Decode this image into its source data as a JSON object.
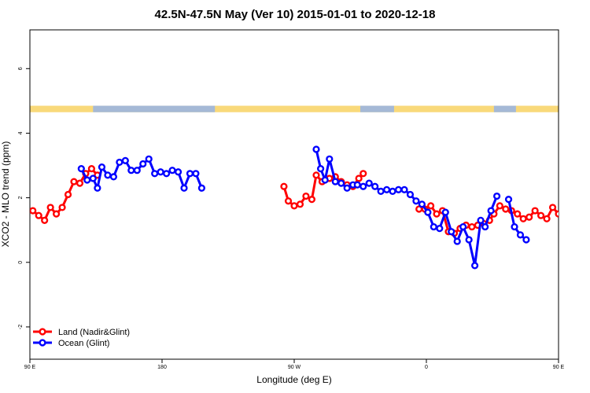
{
  "chart_data": {
    "type": "line",
    "title": "42.5N-47.5N May (Ver 10)   2015-01-01 to 2020-12-18",
    "xlabel": "Longitude (deg E)",
    "ylabel": "XCO2 - MLO trend (ppm)",
    "xlim": [
      90,
      450
    ],
    "ylim": [
      -3.0,
      7.2
    ],
    "x_ticks": [
      {
        "value": 90,
        "label": "90 E"
      },
      {
        "value": 180,
        "label": "180"
      },
      {
        "value": 270,
        "label": "90 W"
      },
      {
        "value": 360,
        "label": "0"
      },
      {
        "value": 450,
        "label": "90 E"
      },
      {
        "value": 540,
        "label": "180"
      }
    ],
    "y_ticks": [
      {
        "value": -2,
        "label": "-2"
      },
      {
        "value": 0,
        "label": "0"
      },
      {
        "value": 2,
        "label": "2"
      },
      {
        "value": 4,
        "label": "4"
      },
      {
        "value": 6,
        "label": "6"
      }
    ],
    "grid": false,
    "legend_position": "bottom-left",
    "surface_strip": {
      "y_range": [
        4.65,
        4.85
      ],
      "land_color": "#f9d97a",
      "ocean_color": "#a5b9d6",
      "ocean_segments": [
        [
          133,
          216
        ],
        [
          315,
          338
        ],
        [
          406,
          421
        ],
        [
          454,
          531
        ]
      ]
    },
    "series": [
      {
        "name": "Land (Nadir&Glint)",
        "color": "#ff0000",
        "points": [
          [
            92,
            1.6
          ],
          [
            96,
            1.45
          ],
          [
            100,
            1.3
          ],
          [
            104,
            1.7
          ],
          [
            108,
            1.5
          ],
          [
            112,
            1.7
          ],
          [
            116,
            2.1
          ],
          [
            120,
            2.5
          ],
          [
            124,
            2.45
          ],
          [
            128,
            2.75
          ],
          [
            132,
            2.9
          ],
          [
            136,
            2.7
          ],
          null,
          [
            263,
            2.35
          ],
          [
            266,
            1.9
          ],
          [
            270,
            1.75
          ],
          [
            274,
            1.8
          ],
          [
            278,
            2.05
          ],
          [
            282,
            1.95
          ],
          [
            285,
            2.7
          ],
          [
            289,
            2.5
          ],
          [
            294,
            2.6
          ],
          [
            298,
            2.65
          ],
          [
            302,
            2.5
          ],
          [
            306,
            2.4
          ],
          [
            310,
            2.35
          ],
          [
            314,
            2.6
          ],
          [
            317,
            2.75
          ],
          null,
          [
            355,
            1.65
          ],
          [
            359,
            1.65
          ],
          [
            363,
            1.75
          ],
          [
            367,
            1.5
          ],
          [
            371,
            1.6
          ],
          [
            375,
            0.95
          ],
          [
            379,
            0.9
          ],
          [
            383,
            1.05
          ],
          [
            387,
            1.15
          ],
          [
            391,
            1.1
          ],
          [
            395,
            1.15
          ],
          [
            399,
            1.2
          ],
          [
            403,
            1.3
          ],
          [
            406,
            1.5
          ],
          [
            410,
            1.75
          ],
          [
            414,
            1.65
          ],
          [
            418,
            1.6
          ],
          [
            422,
            1.5
          ],
          [
            426,
            1.35
          ],
          [
            430,
            1.4
          ],
          [
            434,
            1.6
          ],
          [
            438,
            1.45
          ],
          [
            442,
            1.35
          ],
          [
            446,
            1.7
          ],
          [
            450,
            1.5
          ],
          [
            454,
            1.7
          ],
          [
            458,
            2.1
          ],
          [
            462,
            2.5
          ],
          [
            466,
            2.45
          ],
          [
            470,
            2.75
          ],
          [
            474,
            2.9
          ],
          [
            478,
            2.7
          ]
        ]
      },
      {
        "name": "Ocean (Glint)",
        "color": "#0000ff",
        "points": [
          [
            125,
            2.9
          ],
          [
            129,
            2.55
          ],
          [
            133,
            2.6
          ],
          [
            136,
            2.3
          ],
          [
            139,
            2.95
          ],
          [
            143,
            2.7
          ],
          [
            147,
            2.65
          ],
          [
            151,
            3.1
          ],
          [
            155,
            3.15
          ],
          [
            159,
            2.85
          ],
          [
            163,
            2.85
          ],
          [
            167,
            3.05
          ],
          [
            171,
            3.2
          ],
          [
            175,
            2.75
          ],
          [
            179,
            2.8
          ],
          [
            183,
            2.75
          ],
          [
            187,
            2.85
          ],
          [
            191,
            2.8
          ],
          [
            195,
            2.3
          ],
          [
            199,
            2.75
          ],
          [
            203,
            2.75
          ],
          [
            207,
            2.3
          ],
          null,
          [
            285,
            3.5
          ],
          [
            288,
            2.9
          ],
          [
            291,
            2.55
          ],
          [
            294,
            3.2
          ],
          [
            298,
            2.5
          ],
          [
            302,
            2.45
          ],
          [
            306,
            2.3
          ],
          [
            310,
            2.4
          ],
          [
            313,
            2.4
          ],
          [
            317,
            2.35
          ],
          [
            321,
            2.45
          ],
          [
            325,
            2.35
          ],
          [
            329,
            2.2
          ],
          [
            333,
            2.25
          ],
          [
            337,
            2.2
          ],
          [
            341,
            2.25
          ],
          [
            345,
            2.25
          ],
          [
            349,
            2.1
          ],
          [
            353,
            1.9
          ],
          [
            357,
            1.8
          ],
          [
            361,
            1.55
          ],
          [
            365,
            1.1
          ],
          [
            369,
            1.05
          ],
          [
            373,
            1.55
          ],
          [
            377,
            0.95
          ],
          [
            381,
            0.65
          ],
          [
            385,
            1.1
          ],
          [
            389,
            0.7
          ],
          [
            393,
            -0.1
          ],
          [
            397,
            1.3
          ],
          [
            400,
            1.1
          ],
          [
            404,
            1.6
          ],
          [
            408,
            2.05
          ],
          null,
          [
            416,
            1.95
          ],
          [
            420,
            1.1
          ],
          [
            424,
            0.85
          ],
          [
            428,
            0.7
          ],
          null,
          [
            474,
            2.9
          ],
          [
            478,
            2.55
          ],
          [
            482,
            2.6
          ],
          [
            485,
            2.3
          ],
          [
            488,
            2.95
          ],
          [
            492,
            2.7
          ],
          [
            496,
            2.65
          ],
          [
            500,
            3.1
          ],
          [
            504,
            3.15
          ],
          [
            508,
            2.85
          ]
        ]
      }
    ]
  }
}
